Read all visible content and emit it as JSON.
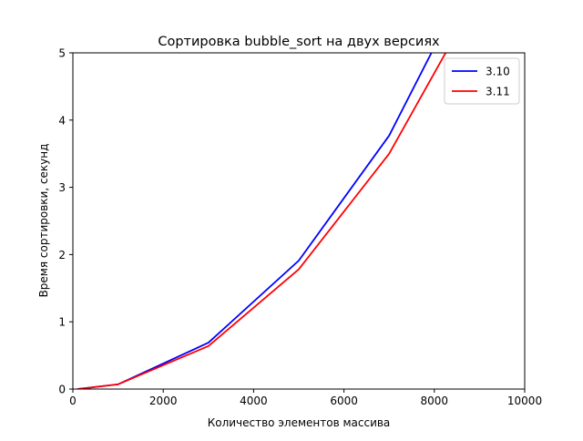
{
  "chart_data": {
    "type": "line",
    "title": "Сортировка bubble_sort на двух версиях",
    "xlabel": "Количество элементов массива",
    "ylabel": "Время сортировки, секунд",
    "xlim": [
      0,
      10000
    ],
    "ylim": [
      0,
      5
    ],
    "xticks": [
      0,
      2000,
      4000,
      6000,
      8000,
      10000
    ],
    "yticks": [
      0,
      1,
      2,
      3,
      4,
      5
    ],
    "grid": false,
    "legend_position": "top-right",
    "series": [
      {
        "name": "3.10",
        "color": "#0000ff",
        "x": [
          100,
          1000,
          3000,
          5000,
          7000,
          9000
        ],
        "y": [
          0.0,
          0.07,
          0.69,
          1.91,
          3.77,
          6.4
        ]
      },
      {
        "name": "3.11",
        "color": "#ff0000",
        "x": [
          100,
          1000,
          3000,
          5000,
          7000,
          9000
        ],
        "y": [
          0.0,
          0.07,
          0.64,
          1.78,
          3.5,
          5.9
        ]
      }
    ]
  }
}
